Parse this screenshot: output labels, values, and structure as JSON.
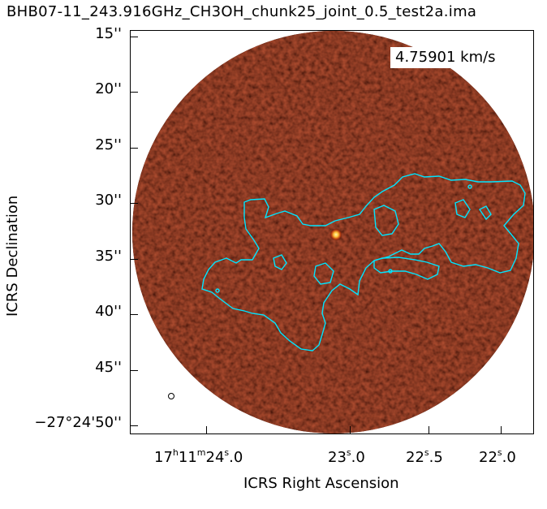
{
  "title": "BHB07-11_243.916GHz_CH3OH_chunk25_joint_0.5_test2a.ima",
  "velocity_label": "4.75901 km/s",
  "axes": {
    "xlabel": "ICRS Right Ascension",
    "ylabel": "ICRS Declination",
    "yticks": [
      "15''",
      "20''",
      "25''",
      "30''",
      "35''",
      "40''",
      "45''",
      "−27°24'50''"
    ],
    "xticks": [
      {
        "h": "17",
        "hs": "h",
        "m": "11",
        "ms": "m",
        "s": "24",
        "ss": "s",
        "f": ".0"
      },
      {
        "s": "23",
        "ss": "s",
        "f": ".0"
      },
      {
        "s": "22",
        "ss": "s",
        "f": ".5"
      },
      {
        "s": "22",
        "ss": "s",
        "f": ".0"
      }
    ]
  },
  "colors": {
    "background_map": "#3a0d06",
    "contour": "#00e5ff",
    "source": "#ffd24a"
  }
}
